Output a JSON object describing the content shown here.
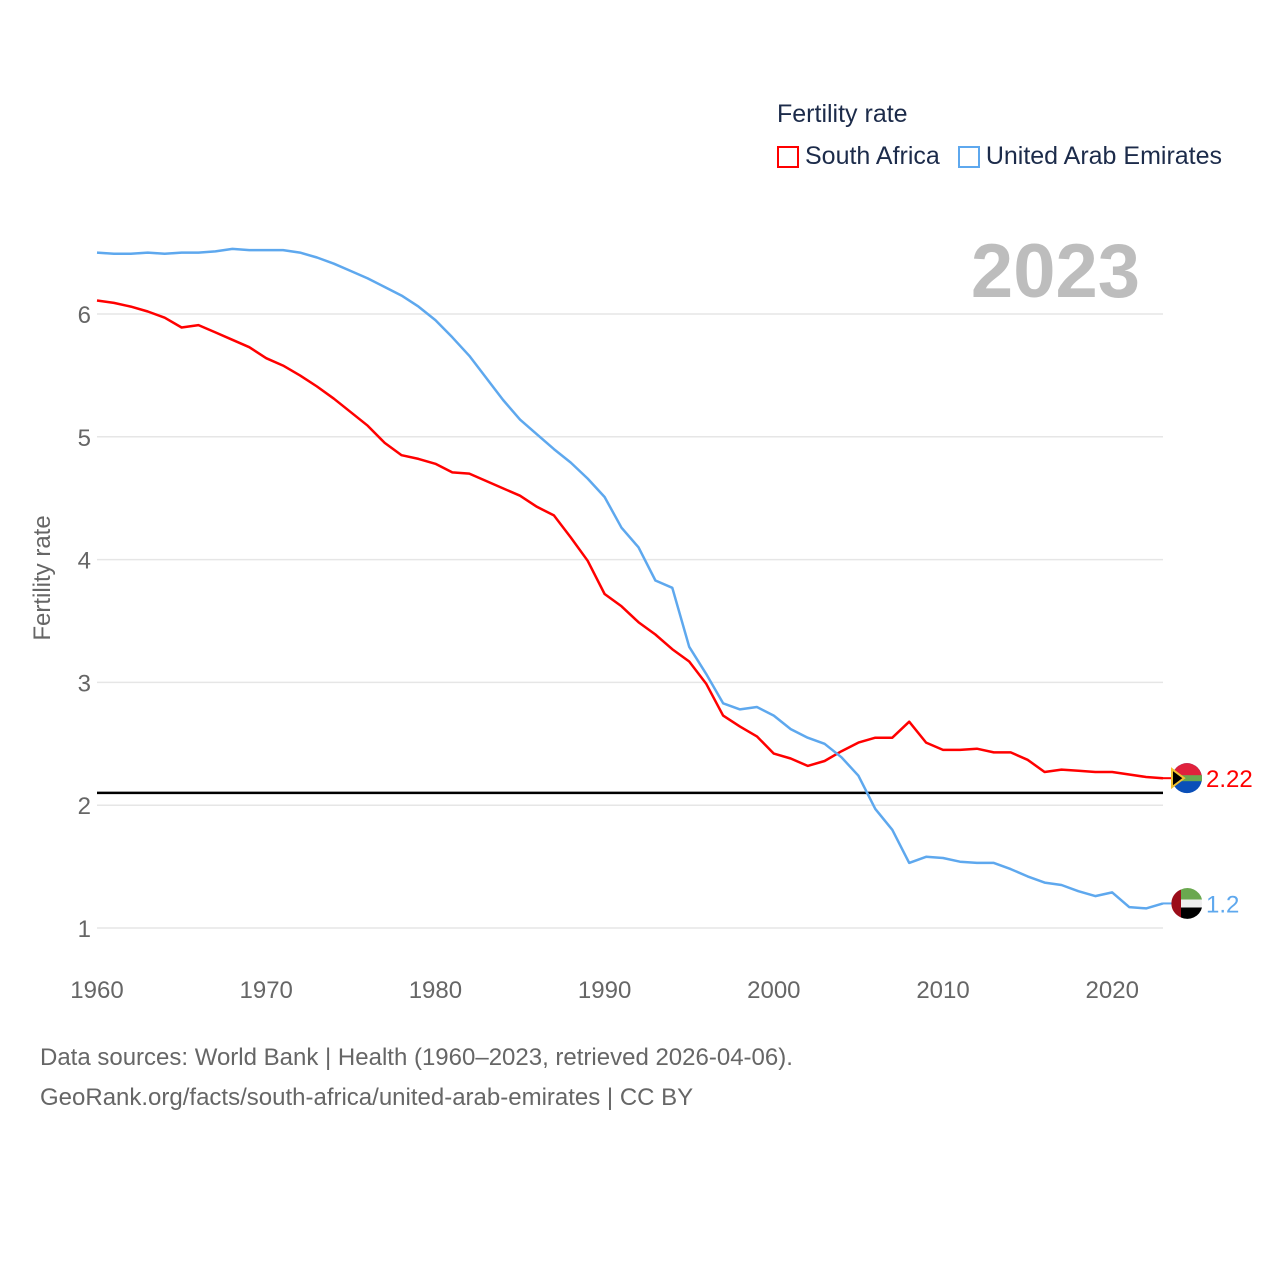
{
  "chart_data": {
    "type": "line",
    "title": "",
    "ylabel": "Fertility rate",
    "xlabel": "",
    "legend_title": "Fertility rate",
    "legend_placement": "top-right",
    "current_year": "2023",
    "xlim": [
      1960,
      2023
    ],
    "ylim": [
      0.8,
      6.6
    ],
    "x_ticks": [
      "1960",
      "1970",
      "1980",
      "1990",
      "2000",
      "2010",
      "2020"
    ],
    "y_ticks": [
      "1",
      "2",
      "3",
      "4",
      "5",
      "6"
    ],
    "grid": true,
    "reference_line": 2.1,
    "x": [
      1960,
      1961,
      1962,
      1963,
      1964,
      1965,
      1966,
      1967,
      1968,
      1969,
      1970,
      1971,
      1972,
      1973,
      1974,
      1975,
      1976,
      1977,
      1978,
      1979,
      1980,
      1981,
      1982,
      1983,
      1984,
      1985,
      1986,
      1987,
      1988,
      1989,
      1990,
      1991,
      1992,
      1993,
      1994,
      1995,
      1996,
      1997,
      1998,
      1999,
      2000,
      2001,
      2002,
      2003,
      2004,
      2005,
      2006,
      2007,
      2008,
      2009,
      2010,
      2011,
      2012,
      2013,
      2014,
      2015,
      2016,
      2017,
      2018,
      2019,
      2020,
      2021,
      2022,
      2023
    ],
    "series": [
      {
        "name": "South Africa",
        "color": "#ff0000",
        "end_label": "2.22",
        "values": [
          6.11,
          6.09,
          6.06,
          6.02,
          5.97,
          5.89,
          5.91,
          5.85,
          5.79,
          5.73,
          5.64,
          5.58,
          5.5,
          5.41,
          5.31,
          5.2,
          5.09,
          4.95,
          4.85,
          4.82,
          4.78,
          4.71,
          4.7,
          4.64,
          4.58,
          4.52,
          4.43,
          4.36,
          4.18,
          3.99,
          3.72,
          3.62,
          3.49,
          3.39,
          3.27,
          3.17,
          2.99,
          2.73,
          2.64,
          2.56,
          2.42,
          2.38,
          2.32,
          2.36,
          2.44,
          2.51,
          2.55,
          2.55,
          2.68,
          2.51,
          2.45,
          2.45,
          2.46,
          2.43,
          2.43,
          2.37,
          2.27,
          2.29,
          2.28,
          2.27,
          2.27,
          2.25,
          2.23,
          2.22
        ]
      },
      {
        "name": "United Arab Emirates",
        "color": "#5ea8ee",
        "end_label": "1.2",
        "values": [
          6.5,
          6.49,
          6.49,
          6.5,
          6.49,
          6.5,
          6.5,
          6.51,
          6.53,
          6.52,
          6.52,
          6.52,
          6.5,
          6.46,
          6.41,
          6.35,
          6.29,
          6.22,
          6.15,
          6.06,
          5.95,
          5.81,
          5.66,
          5.48,
          5.3,
          5.14,
          5.02,
          4.9,
          4.79,
          4.66,
          4.51,
          4.26,
          4.1,
          3.83,
          3.77,
          3.29,
          3.07,
          2.83,
          2.78,
          2.8,
          2.73,
          2.62,
          2.55,
          2.5,
          2.39,
          2.24,
          1.97,
          1.8,
          1.53,
          1.58,
          1.57,
          1.54,
          1.53,
          1.53,
          1.48,
          1.42,
          1.37,
          1.35,
          1.3,
          1.26,
          1.29,
          1.17,
          1.16,
          1.2
        ]
      }
    ]
  },
  "footer": {
    "line1": "Data sources: World Bank | Health (1960–2023, retrieved 2026-04-06).",
    "line2": "GeoRank.org/facts/south-africa/united-arab-emirates | CC BY"
  }
}
